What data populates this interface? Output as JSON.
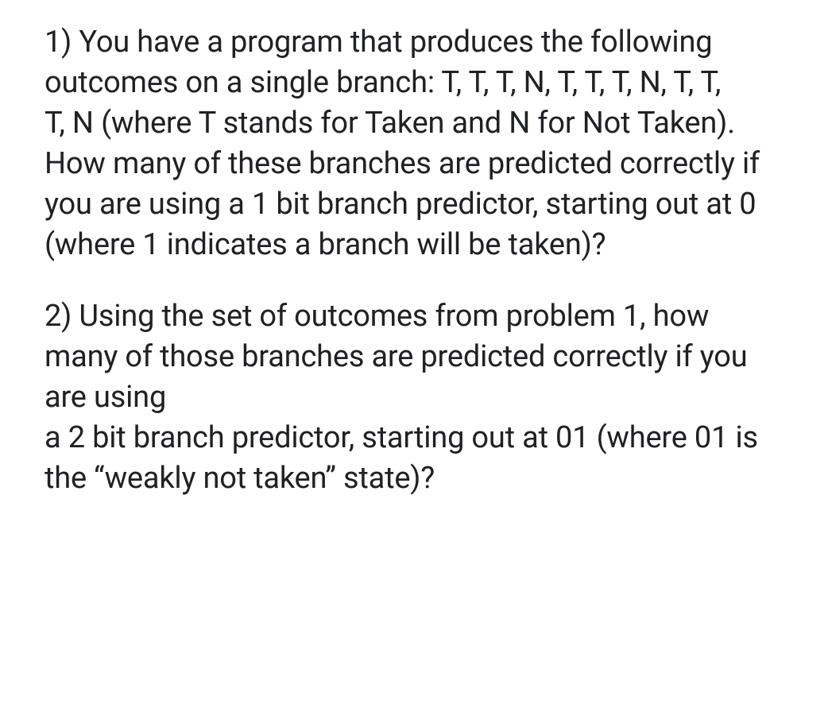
{
  "document": {
    "background_color": "#ffffff",
    "text_color": "#202124",
    "font_size_pt": 28,
    "line_height": 1.34,
    "questions": [
      {
        "number": "1)",
        "text": "1) You have a program that produces the following outcomes on a single branch: T, T, T, N, T, T, T, N, T, T,\nT, N (where T stands for Taken and N for Not Taken). How many of these branches are predicted correctly if\nyou are using a 1 bit branch predictor, starting out at 0 (where 1 indicates a branch will be taken)?"
      },
      {
        "number": "2)",
        "text": "2) Using the set of outcomes from problem 1, how many of those branches are predicted correctly if you are using\na 2 bit branch predictor, starting out at 01 (where 01 is the “weakly not taken” state)?"
      }
    ]
  }
}
